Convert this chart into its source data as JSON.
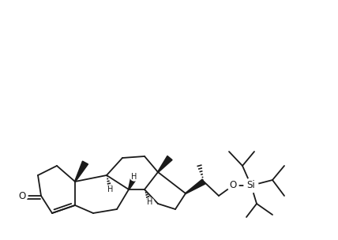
{
  "bg_color": "#ffffff",
  "line_color": "#1a1a1a",
  "lw": 1.3,
  "fig_w": 4.28,
  "fig_h": 3.04,
  "dpi": 100,
  "xlim": [
    0,
    428
  ],
  "ylim": [
    0,
    304
  ]
}
